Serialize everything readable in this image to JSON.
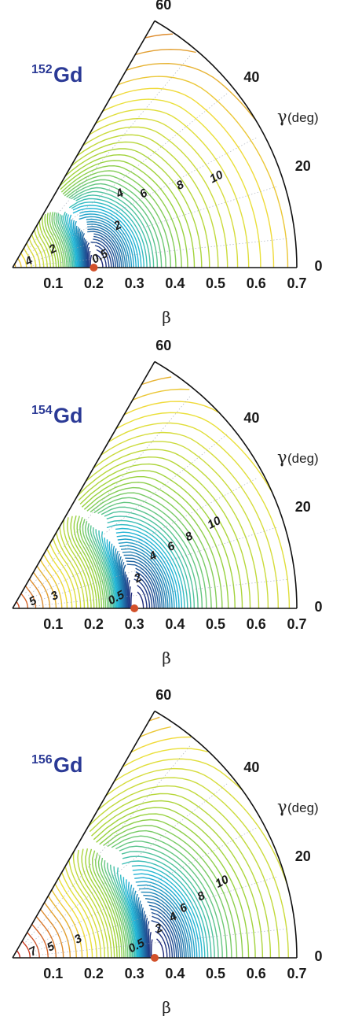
{
  "chart_data": [
    {
      "type": "contour",
      "title_mass": "152",
      "title_element": "Gd",
      "xlabel": "β",
      "ylabel": "γ",
      "ylabel_unit": "(deg)",
      "beta_ticks": [
        "0.1",
        "0.2",
        "0.3",
        "0.4",
        "0.5",
        "0.6",
        "0.7"
      ],
      "beta_range": [
        0,
        0.7
      ],
      "gamma_ticks": [
        "0",
        "20",
        "40",
        "60"
      ],
      "gamma_range": [
        0,
        60
      ],
      "minimum": {
        "beta": 0.2,
        "gamma": 0
      },
      "contour_labels": [
        {
          "text": "0.5",
          "beta": 0.22,
          "gamma": 5
        },
        {
          "text": "2",
          "beta": 0.28,
          "gamma": 20
        },
        {
          "text": "4",
          "beta": 0.045,
          "gamma": 10
        },
        {
          "text": "2",
          "beta": 0.11,
          "gamma": 20
        },
        {
          "text": "4",
          "beta": 0.32,
          "gamma": 33
        },
        {
          "text": "6",
          "beta": 0.37,
          "gamma": 28
        },
        {
          "text": "8",
          "beta": 0.46,
          "gamma": 25
        },
        {
          "text": "10",
          "beta": 0.55,
          "gamma": 23
        }
      ]
    },
    {
      "type": "contour",
      "title_mass": "154",
      "title_element": "Gd",
      "xlabel": "β",
      "ylabel": "γ",
      "ylabel_unit": "(deg)",
      "beta_ticks": [
        "0.1",
        "0.2",
        "0.3",
        "0.4",
        "0.5",
        "0.6",
        "0.7"
      ],
      "beta_range": [
        0,
        0.7
      ],
      "gamma_ticks": [
        "0",
        "20",
        "40",
        "60"
      ],
      "gamma_range": [
        0,
        60
      ],
      "minimum": {
        "beta": 0.3,
        "gamma": 0
      },
      "contour_labels": [
        {
          "text": "0.5",
          "beta": 0.26,
          "gamma": 4
        },
        {
          "text": "2",
          "beta": 0.32,
          "gamma": 12
        },
        {
          "text": "3",
          "beta": 0.11,
          "gamma": 12
        },
        {
          "text": "5",
          "beta": 0.055,
          "gamma": 10
        },
        {
          "text": "4",
          "beta": 0.37,
          "gamma": 19
        },
        {
          "text": "6",
          "beta": 0.42,
          "gamma": 20
        },
        {
          "text": "8",
          "beta": 0.47,
          "gamma": 21
        },
        {
          "text": "10",
          "beta": 0.54,
          "gamma": 22
        }
      ]
    },
    {
      "type": "contour",
      "title_mass": "156",
      "title_element": "Gd",
      "xlabel": "β",
      "ylabel": "γ",
      "ylabel_unit": "(deg)",
      "beta_ticks": [
        "0.1",
        "0.2",
        "0.3",
        "0.4",
        "0.5",
        "0.6",
        "0.7"
      ],
      "beta_range": [
        0,
        0.7
      ],
      "gamma_ticks": [
        "0",
        "20",
        "40",
        "60"
      ],
      "gamma_range": [
        0,
        60
      ],
      "minimum": {
        "beta": 0.35,
        "gamma": 0
      },
      "contour_labels": [
        {
          "text": "0.5",
          "beta": 0.31,
          "gamma": 4
        },
        {
          "text": "2",
          "beta": 0.37,
          "gamma": 10
        },
        {
          "text": "3",
          "beta": 0.17,
          "gamma": 13
        },
        {
          "text": "5",
          "beta": 0.1,
          "gamma": 11
        },
        {
          "text": "7",
          "beta": 0.055,
          "gamma": 8
        },
        {
          "text": "4",
          "beta": 0.41,
          "gamma": 13
        },
        {
          "text": "6",
          "beta": 0.44,
          "gamma": 15
        },
        {
          "text": "8",
          "beta": 0.49,
          "gamma": 17
        },
        {
          "text": "10",
          "beta": 0.55,
          "gamma": 19
        }
      ]
    }
  ],
  "colors": {
    "low": "#1f2a7a",
    "mid": "#22b8d8",
    "high_green": "#9ad23c",
    "high_yellow": "#f1e13a",
    "high_red": "#c4161c",
    "minimum_dot": "#d2502a",
    "nucleus_label": "#2b3a96"
  }
}
